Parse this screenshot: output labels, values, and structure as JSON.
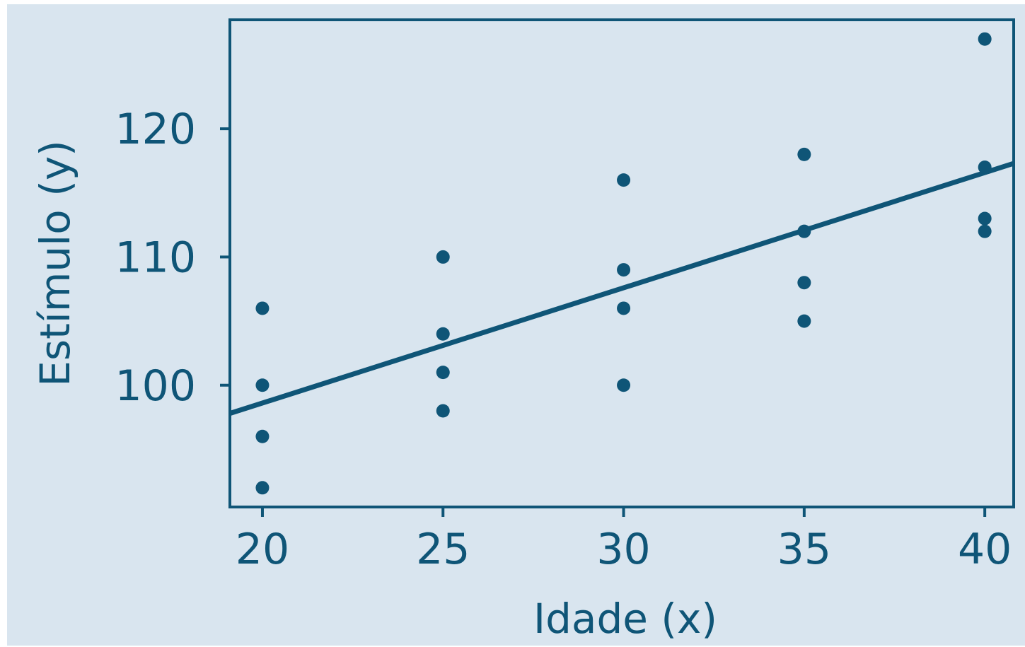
{
  "chart_data": {
    "type": "scatter",
    "title": "",
    "xlabel": "Idade (x)",
    "ylabel": "Estímulo (y)",
    "xlim": [
      19.1,
      40.8
    ],
    "ylim": [
      90.5,
      128.5
    ],
    "x_ticks": [
      20,
      25,
      30,
      35,
      40
    ],
    "y_ticks": [
      100,
      110,
      120
    ],
    "x_tick_labels": [
      "20",
      "25",
      "30",
      "35",
      "40"
    ],
    "y_tick_labels": [
      "100",
      "110",
      "120"
    ],
    "grid": false,
    "colors": {
      "points": "#0f5577",
      "line": "#0f5577",
      "background": "#d9e5ef",
      "axes": "#0f5577"
    },
    "series": [
      {
        "type": "scatter",
        "x": [
          20,
          20,
          20,
          20,
          25,
          25,
          25,
          25,
          30,
          30,
          30,
          30,
          35,
          35,
          35,
          35,
          40,
          40,
          40,
          40
        ],
        "y": [
          106,
          100,
          96,
          92,
          110,
          104,
          101,
          98,
          116,
          109,
          106,
          100,
          118,
          112,
          108,
          105,
          127,
          117,
          113,
          112
        ]
      },
      {
        "type": "line",
        "x": [
          19.1,
          40.8
        ],
        "y": [
          97.8,
          117.3
        ]
      }
    ]
  }
}
